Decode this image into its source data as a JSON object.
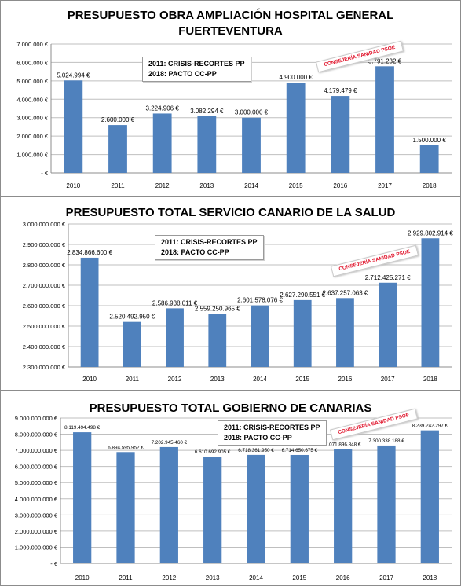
{
  "colors": {
    "bar": "#4f81bd",
    "grid": "#bfbfbf",
    "stamp": "#e0142b"
  },
  "charts": [
    {
      "title_line1": "PRESUPUESTO OBRA AMPLIACIÓN HOSPITAL GENERAL",
      "title_line2": "FUERTEVENTURA",
      "note_line1": "2011: CRISIS-RECORTES PP",
      "note_line2": "2018: PACTO CC-PP",
      "stamp": "CONSEJERÍA SANIDAD PSOE"
    },
    {
      "title_line1": "PRESUPUESTO TOTAL SERVICIO CANARIO DE LA SALUD",
      "note_line1": "2011: CRISIS-RECORTES PP",
      "note_line2": "2018: PACTO CC-PP",
      "stamp": "CONSEJERÍA SANIDAD PSOE"
    },
    {
      "title_line1": "PRESUPUESTO TOTAL GOBIERNO DE CANARIAS",
      "note_line1": "2011: CRISIS-RECORTES PP",
      "note_line2": "2018: PACTO CC-PP",
      "stamp": "CONSEJERÍA SANIDAD PSOE"
    }
  ],
  "chart_data": [
    {
      "type": "bar",
      "title": "PRESUPUESTO OBRA AMPLIACIÓN HOSPITAL GENERAL FUERTEVENTURA",
      "categories": [
        "2010",
        "2011",
        "2012",
        "2013",
        "2014",
        "2015",
        "2016",
        "2017",
        "2018"
      ],
      "values": [
        5024994,
        2600000,
        3224906,
        3082294,
        3000000,
        4900000,
        4179479,
        5791232,
        1500000
      ],
      "data_labels": [
        "5.024.994 €",
        "2.600.000 €",
        "3.224.906 €",
        "3.082.294 €",
        "3.000.000 €",
        "4.900.000 €",
        "4.179.479 €",
        "5.791.232 €",
        "1.500.000 €"
      ],
      "ylim": [
        0,
        7000000
      ],
      "yticks": [
        0,
        1000000,
        2000000,
        3000000,
        4000000,
        5000000,
        6000000,
        7000000
      ],
      "ytick_labels": [
        "-   €",
        "1.000.000 €",
        "2.000.000 €",
        "3.000.000 €",
        "4.000.000 €",
        "5.000.000 €",
        "6.000.000 €",
        "7.000.000 €"
      ],
      "grid": true,
      "legend": "none"
    },
    {
      "type": "bar",
      "title": "PRESUPUESTO TOTAL SERVICIO CANARIO DE LA SALUD",
      "categories": [
        "2010",
        "2011",
        "2012",
        "2013",
        "2014",
        "2015",
        "2016",
        "2017",
        "2018"
      ],
      "values": [
        2834866600,
        2520492950,
        2586938011,
        2559250965,
        2601578076,
        2627290551,
        2637257063,
        2712425271,
        2929802914
      ],
      "data_labels": [
        "2.834.866.600 €",
        "2.520.492.950 €",
        "2.586.938.011 €",
        "2.559.250.965 €",
        "2.601.578.076 €",
        "2.627.290.551 €",
        "2.637.257.063 €",
        "2.712.425.271 €",
        "2.929.802.914 €"
      ],
      "ylim": [
        2300000000,
        3000000000
      ],
      "yticks": [
        2300000000,
        2400000000,
        2500000000,
        2600000000,
        2700000000,
        2800000000,
        2900000000,
        3000000000
      ],
      "ytick_labels": [
        "2.300.000.000 €",
        "2.400.000.000 €",
        "2.500.000.000 €",
        "2.600.000.000 €",
        "2.700.000.000 €",
        "2.800.000.000 €",
        "2.900.000.000 €",
        "3.000.000.000 €"
      ],
      "grid": true,
      "legend": "none"
    },
    {
      "type": "bar",
      "title": "PRESUPUESTO TOTAL GOBIERNO DE CANARIAS",
      "categories": [
        "2010",
        "2011",
        "2012",
        "2013",
        "2014",
        "2015",
        "2016",
        "2017",
        "2018"
      ],
      "values": [
        8119494498,
        6894595952,
        7202945460,
        6610692905,
        6718361950,
        6714650675,
        7071896848,
        7300338188,
        8239242297
      ],
      "data_labels": [
        "8.119.494.498 €",
        "6.894.595.952 €",
        "7.202.945.460 €",
        "6.610.692.905 €",
        "6.718.361.950 €",
        "6.714.650.675 €",
        "7.071.896.848 €",
        "7.300.338.188 €",
        "8.239.242.297 €"
      ],
      "ylim": [
        0,
        9000000000
      ],
      "yticks": [
        0,
        1000000000,
        2000000000,
        3000000000,
        4000000000,
        5000000000,
        6000000000,
        7000000000,
        8000000000,
        9000000000
      ],
      "ytick_labels": [
        "-   €",
        "1.000.000.000 €",
        "2.000.000.000 €",
        "3.000.000.000 €",
        "4.000.000.000 €",
        "5.000.000.000 €",
        "6.000.000.000 €",
        "7.000.000.000 €",
        "8.000.000.000 €",
        "9.000.000.000 €"
      ],
      "grid": true,
      "legend": "none"
    }
  ]
}
